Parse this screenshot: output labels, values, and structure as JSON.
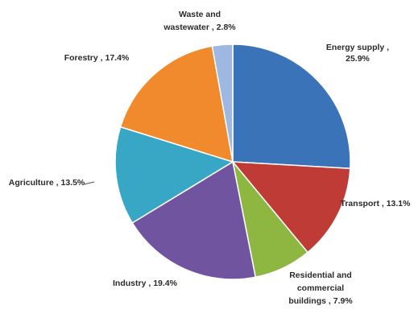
{
  "chart_data": {
    "type": "pie",
    "start_angle_deg": 0,
    "direction": "clockwise",
    "slices": [
      {
        "label": "Energy supply",
        "value": 25.9,
        "label_lines": [
          "Energy supply ,",
          "25.9%"
        ],
        "color": "#3b73b9"
      },
      {
        "label": "Transport",
        "value": 13.1,
        "label_lines": [
          "Transport , 13.1%"
        ],
        "color": "#be3b36"
      },
      {
        "label": "Residential and commercial buildings",
        "value": 7.9,
        "label_lines": [
          "Residential and",
          "commercial",
          "buildings , 7.9%"
        ],
        "color": "#8db741"
      },
      {
        "label": "Industry",
        "value": 19.4,
        "label_lines": [
          "Industry , 19.4%"
        ],
        "color": "#7154a0"
      },
      {
        "label": "Agriculture",
        "value": 13.5,
        "label_lines": [
          "Agriculture , 13.5%"
        ],
        "color": "#38a7c6"
      },
      {
        "label": "Forestry",
        "value": 17.4,
        "label_lines": [
          "Forestry , 17.4%"
        ],
        "color": "#f08a2c"
      },
      {
        "label": "Waste and wastewater",
        "value": 2.8,
        "label_lines": [
          "Waste and",
          "wastewater , 2.8%"
        ],
        "color": "#9eb8e2"
      }
    ]
  }
}
